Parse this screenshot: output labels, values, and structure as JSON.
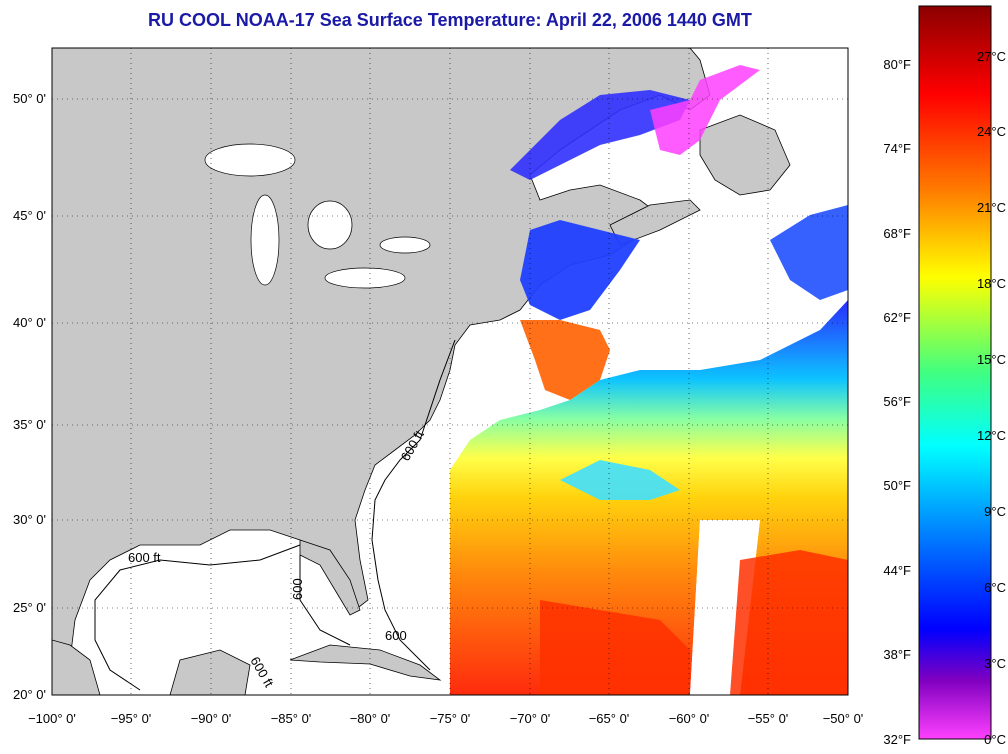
{
  "title": "RU COOL  NOAA-17  Sea Surface Temperature:  April 22, 2006 1440 GMT",
  "map": {
    "lon_range": [
      -100,
      -50
    ],
    "lat_range": [
      20,
      52.3
    ],
    "lon_ticks": [
      "−100° 0'",
      "−95° 0'",
      "−90° 0'",
      "−85° 0'",
      "−80° 0'",
      "−75° 0'",
      "−70° 0'",
      "−65° 0'",
      "−60° 0'",
      "−55° 0'",
      "−50° 0'"
    ],
    "lat_ticks": [
      "20° 0'",
      "25° 0'",
      "30° 0'",
      "35° 0'",
      "40° 0'",
      "45° 0'",
      "50° 0'"
    ],
    "contour_labels": [
      "600 ft",
      "600 ft",
      "600",
      "600 ft",
      "600"
    ],
    "grid": "dotted",
    "land_color": "#c8c8c8",
    "water_color": "#ffffff"
  },
  "colorbar": {
    "fahrenheit_labels": [
      "80°F",
      "74°F",
      "68°F",
      "62°F",
      "56°F",
      "50°F",
      "44°F",
      "38°F",
      "32°F"
    ],
    "celsius_labels": [
      "27°C",
      "24°C",
      "21°C",
      "18°C",
      "15°C",
      "12°C",
      "9°C",
      "6°C",
      "3°C",
      "0°C"
    ],
    "colors_top_to_bottom": [
      "#8b0000",
      "#ff0000",
      "#ff8000",
      "#ffff00",
      "#00ff80",
      "#00ffff",
      "#0080ff",
      "#0000ff",
      "#8000c0",
      "#ff40ff"
    ]
  }
}
